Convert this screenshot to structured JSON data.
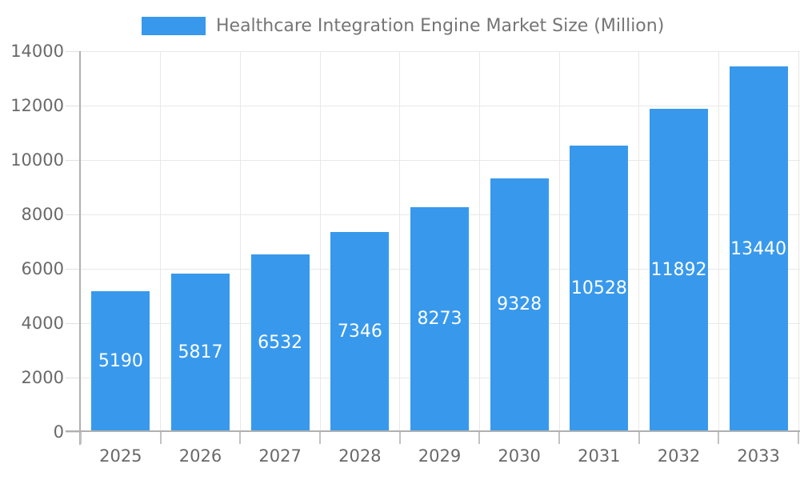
{
  "chart_data": {
    "type": "bar",
    "title": "Healthcare Integration Engine Market Size (Million)",
    "legend_entries": [
      "Healthcare Integration Engine Market Size (Million)"
    ],
    "legend_position": "top-center",
    "categories": [
      "2025",
      "2026",
      "2027",
      "2028",
      "2029",
      "2030",
      "2031",
      "2032",
      "2033"
    ],
    "values": [
      5190,
      5817,
      6532,
      7346,
      8273,
      9328,
      10528,
      11892,
      13440
    ],
    "xlabel": "",
    "ylabel": "",
    "ylim": [
      0,
      14000
    ],
    "yticks": [
      0,
      2000,
      4000,
      6000,
      8000,
      10000,
      12000,
      14000
    ],
    "grid": "horizontal and vertical light gray gridlines",
    "bar_label_position": "inside-center-white"
  },
  "colors": {
    "bar": "#3899ec",
    "bar_label": "#ffffff",
    "title_text": "#757575",
    "axis_text": "#696969",
    "grid_line": "#e8e8e8",
    "y_tick": "#e0e0e0",
    "x_tick": "#c2c2c2",
    "axis_line": "#b0b0b0",
    "background": "#ffffff"
  }
}
